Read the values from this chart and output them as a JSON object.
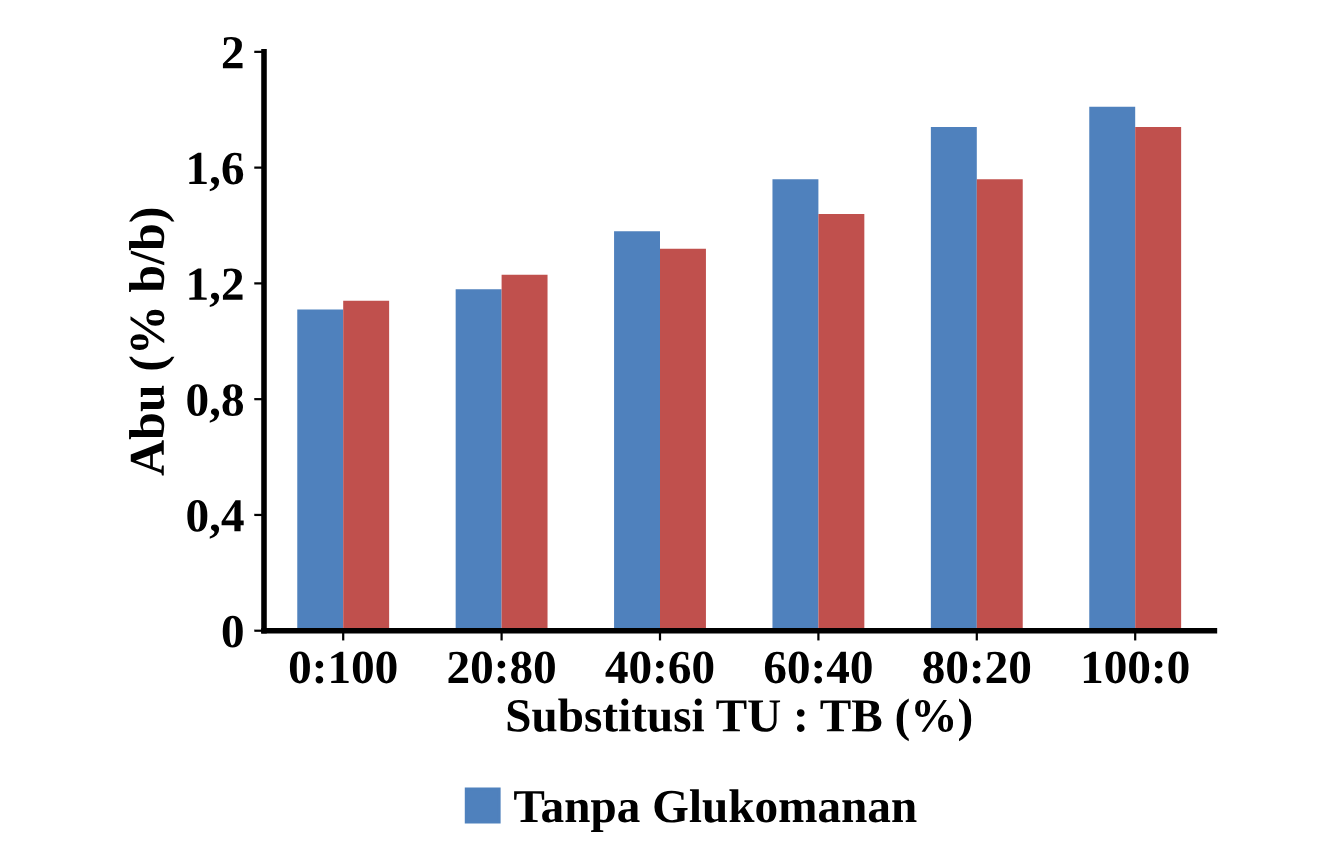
{
  "chart_data": {
    "type": "bar",
    "xlabel": "Substitusi TU : TB (%)",
    "ylabel": "Abu (% b/b)",
    "categories": [
      "0:100",
      "20:80",
      "40:60",
      "60:40",
      "80:20",
      "100:0"
    ],
    "series": [
      {
        "name": "Tanpa Glukomanan",
        "color": "#4f81bd",
        "values": [
          1.11,
          1.18,
          1.38,
          1.56,
          1.74,
          1.81
        ]
      },
      {
        "color": "#c0504d",
        "values": [
          1.14,
          1.23,
          1.32,
          1.44,
          1.56,
          1.74
        ]
      }
    ],
    "ylim": [
      0,
      2
    ],
    "yticks": [
      0,
      {
        "value": 0.4,
        "label": "0,4"
      },
      {
        "value": 0.8,
        "label": "0,8"
      },
      {
        "value": 1.2,
        "label": "1,2"
      },
      {
        "value": 1.6,
        "label": "1,6"
      },
      2
    ],
    "grid": false,
    "legend": "bottom"
  }
}
